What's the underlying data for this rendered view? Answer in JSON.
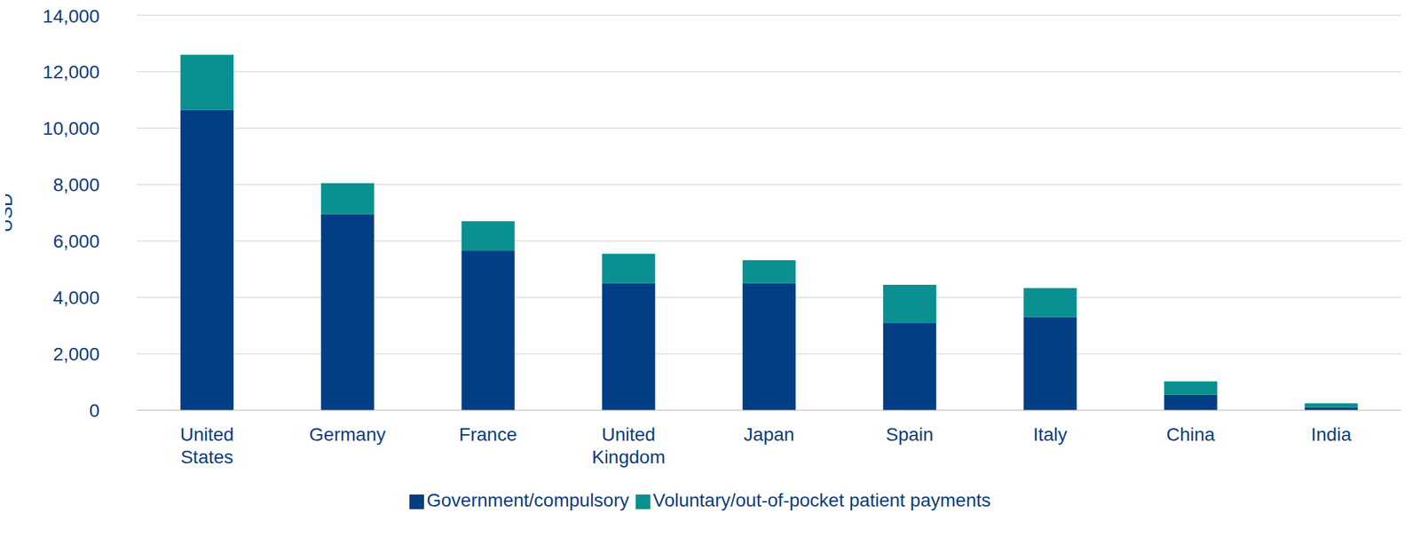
{
  "chart_data": {
    "type": "bar",
    "y_label": "USD",
    "categories": [
      "United States",
      "Germany",
      "France",
      "United Kingdom",
      "Japan",
      "Spain",
      "Italy",
      "China",
      "India"
    ],
    "series": [
      {
        "name": "Government/compulsory",
        "color": "#023e84",
        "values": [
          10650,
          6950,
          5650,
          4500,
          4500,
          3100,
          3300,
          545,
          100
        ]
      },
      {
        "name": "Voluntary/out-of-pocket patient payments",
        "color": "#0a9090",
        "values": [
          1950,
          1100,
          1050,
          1050,
          820,
          1350,
          1030,
          480,
          150
        ]
      }
    ],
    "ylim": [
      0,
      14000
    ],
    "yticks": [
      0,
      {
        "value": 2000,
        "label": "2,000"
      },
      {
        "value": 4000,
        "label": "4,000"
      },
      {
        "value": 6000,
        "label": "6,000"
      },
      {
        "value": 8000,
        "label": "8,000"
      },
      {
        "value": 10000,
        "label": "10,000"
      },
      {
        "value": 12000,
        "label": "12,000"
      },
      {
        "value": 14000,
        "label": "14,000"
      }
    ],
    "grid": true,
    "stacked": true,
    "legend": "bottom"
  }
}
